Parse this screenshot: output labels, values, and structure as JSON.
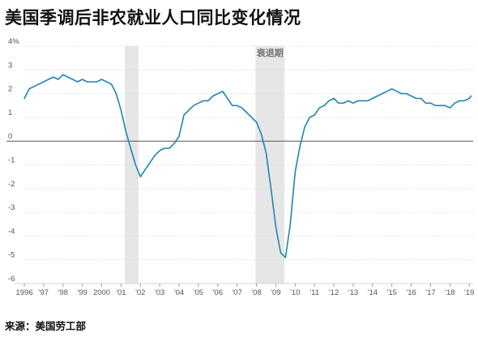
{
  "title": "美国季调后非农就业人口同比变化情况",
  "source": "来源：美国劳工部",
  "colors": {
    "line": "#1f86b0",
    "recession": "#e6e6e6",
    "grid": "#d5d5d5",
    "zero": "#555555"
  },
  "chart_data": {
    "type": "line",
    "y_unit": "%",
    "ylim": [
      -6,
      4
    ],
    "yticks": [
      -6,
      -5,
      -4,
      -3,
      -2,
      -1,
      0,
      1,
      2,
      3,
      4
    ],
    "ytick_labels": [
      "-6",
      "-5",
      "-4",
      "-3",
      "-2",
      "-1",
      "0",
      "1",
      "2",
      "3",
      "4%"
    ],
    "xlim": [
      1996,
      2019.2
    ],
    "xticks": [
      1996,
      1997,
      1998,
      1999,
      2000,
      2001,
      2002,
      2003,
      2004,
      2005,
      2006,
      2007,
      2008,
      2009,
      2010,
      2011,
      2012,
      2013,
      2014,
      2015,
      2016,
      2017,
      2018,
      2019
    ],
    "xtick_labels": [
      "1996",
      "'97",
      "'98",
      "'99",
      "2000",
      "'01",
      "'02",
      "'03",
      "'04",
      "'05",
      "'06",
      "'07",
      "'08",
      "'09",
      "'10",
      "'11",
      "'12",
      "'13",
      "'14",
      "'15",
      "'16",
      "'17",
      "'18",
      "'19"
    ],
    "grid": "horizontal",
    "recessions": [
      {
        "start": 2001.2,
        "end": 2001.9
      },
      {
        "start": 2007.95,
        "end": 2009.45,
        "label": "衰退期"
      }
    ],
    "series": [
      {
        "x": [
          1996.0,
          1996.25,
          1996.5,
          1996.75,
          1997.0,
          1997.25,
          1997.5,
          1997.75,
          1998.0,
          1998.25,
          1998.5,
          1998.75,
          1999.0,
          1999.25,
          1999.5,
          1999.75,
          2000.0,
          2000.25,
          2000.5,
          2000.75,
          2001.0,
          2001.25,
          2001.5,
          2001.75,
          2002.0,
          2002.25,
          2002.5,
          2002.75,
          2003.0,
          2003.25,
          2003.5,
          2003.75,
          2004.0,
          2004.25,
          2004.5,
          2004.75,
          2005.0,
          2005.25,
          2005.5,
          2005.75,
          2006.0,
          2006.25,
          2006.5,
          2006.75,
          2007.0,
          2007.25,
          2007.5,
          2007.75,
          2008.0,
          2008.25,
          2008.5,
          2008.75,
          2009.0,
          2009.25,
          2009.5,
          2009.75,
          2010.0,
          2010.25,
          2010.5,
          2010.75,
          2011.0,
          2011.25,
          2011.5,
          2011.75,
          2012.0,
          2012.25,
          2012.5,
          2012.75,
          2013.0,
          2013.25,
          2013.5,
          2013.75,
          2014.0,
          2014.25,
          2014.5,
          2014.75,
          2015.0,
          2015.25,
          2015.5,
          2015.75,
          2016.0,
          2016.25,
          2016.5,
          2016.75,
          2017.0,
          2017.25,
          2017.5,
          2017.75,
          2018.0,
          2018.25,
          2018.5,
          2018.75,
          2019.0,
          2019.1
        ],
        "y": [
          1.8,
          2.2,
          2.3,
          2.4,
          2.5,
          2.6,
          2.7,
          2.6,
          2.8,
          2.7,
          2.6,
          2.5,
          2.6,
          2.5,
          2.5,
          2.5,
          2.6,
          2.5,
          2.4,
          2.0,
          1.3,
          0.4,
          -0.3,
          -1.0,
          -1.5,
          -1.2,
          -0.9,
          -0.6,
          -0.4,
          -0.3,
          -0.3,
          -0.1,
          0.2,
          1.1,
          1.3,
          1.5,
          1.6,
          1.7,
          1.7,
          1.9,
          2.0,
          2.1,
          1.8,
          1.5,
          1.5,
          1.4,
          1.2,
          1.0,
          0.8,
          0.3,
          -0.5,
          -2.0,
          -3.6,
          -4.7,
          -4.9,
          -3.5,
          -1.3,
          -0.2,
          0.6,
          1.0,
          1.1,
          1.4,
          1.5,
          1.7,
          1.8,
          1.6,
          1.6,
          1.7,
          1.6,
          1.7,
          1.7,
          1.7,
          1.8,
          1.9,
          2.0,
          2.1,
          2.2,
          2.1,
          2.0,
          2.0,
          1.9,
          1.8,
          1.8,
          1.6,
          1.6,
          1.5,
          1.5,
          1.5,
          1.4,
          1.6,
          1.7,
          1.7,
          1.8,
          1.9
        ]
      }
    ]
  }
}
